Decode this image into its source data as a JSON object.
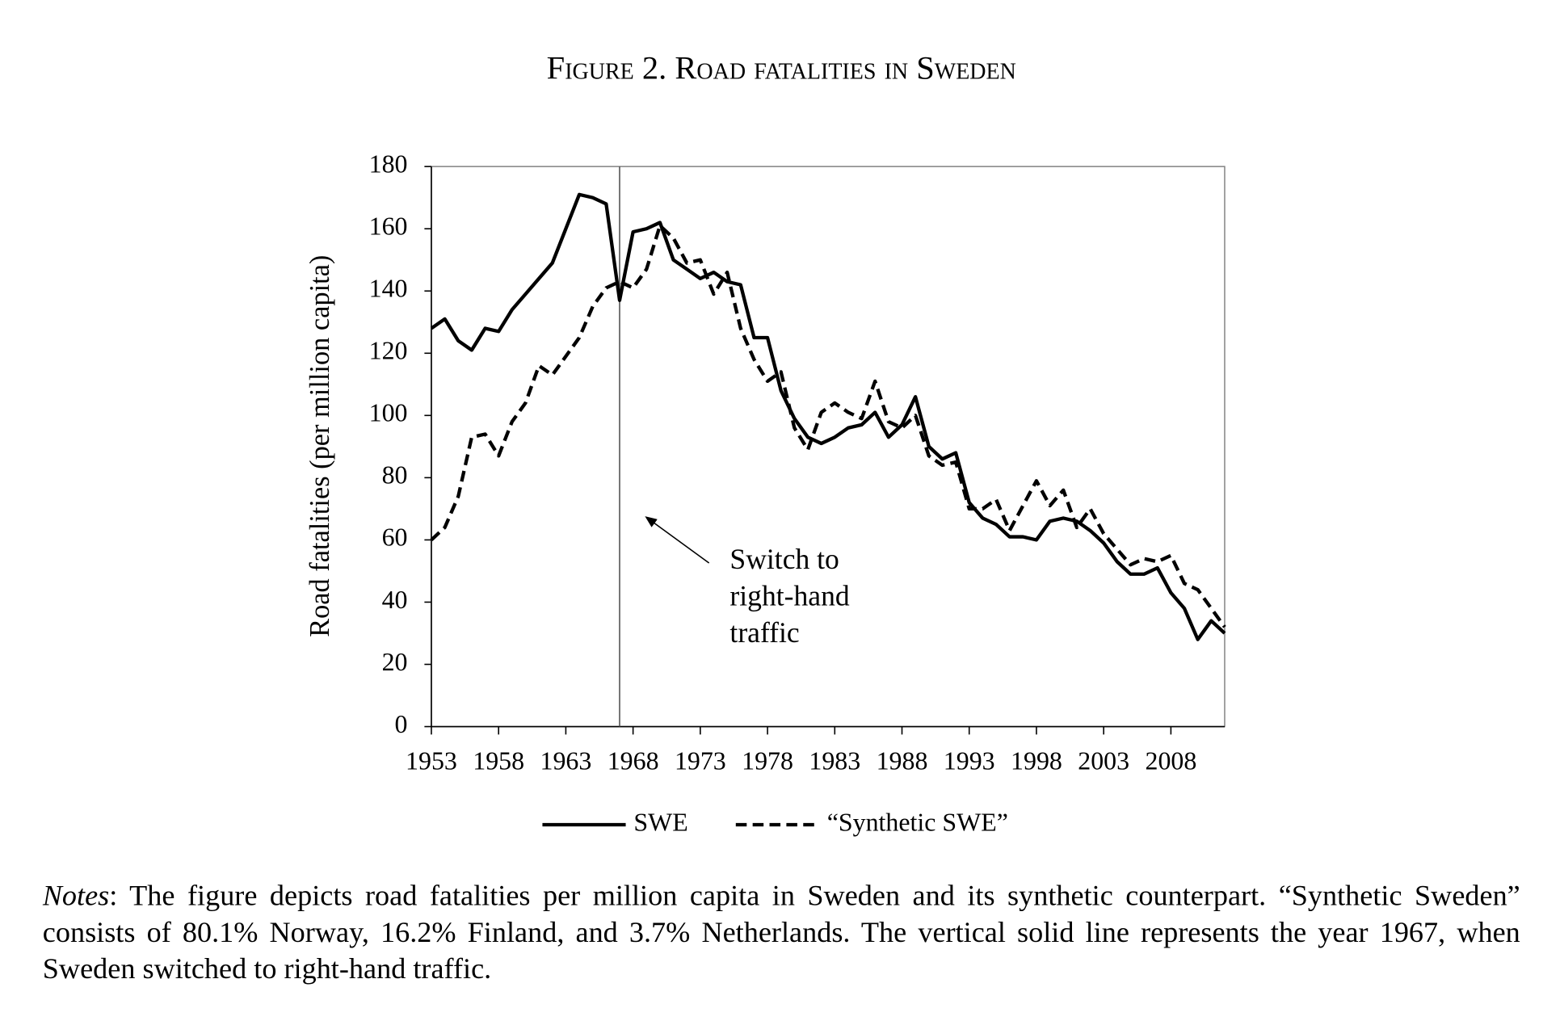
{
  "chart_data": {
    "type": "line",
    "title": "Figure 2. Road fatalities in Sweden",
    "ylabel": "Road fatalities (per million capita)",
    "x": [
      1953,
      1954,
      1955,
      1956,
      1957,
      1958,
      1959,
      1960,
      1961,
      1962,
      1963,
      1964,
      1965,
      1966,
      1967,
      1968,
      1969,
      1970,
      1971,
      1972,
      1973,
      1974,
      1975,
      1976,
      1977,
      1978,
      1979,
      1980,
      1981,
      1982,
      1983,
      1984,
      1985,
      1986,
      1987,
      1988,
      1989,
      1990,
      1991,
      1992,
      1993,
      1994,
      1995,
      1996,
      1997,
      1998,
      1999,
      2000,
      2001,
      2002,
      2003,
      2004,
      2005,
      2006,
      2007,
      2008,
      2009,
      2010,
      2011,
      2012
    ],
    "series": [
      {
        "name": "SWE",
        "color": "#000000",
        "dash": false,
        "values": [
          128,
          131,
          124,
          121,
          128,
          127,
          134,
          139,
          144,
          149,
          160,
          171,
          170,
          168,
          137,
          159,
          160,
          162,
          150,
          147,
          144,
          146,
          143,
          142,
          125,
          125,
          108,
          99,
          93,
          91,
          93,
          96,
          97,
          101,
          93,
          97,
          106,
          90,
          86,
          88,
          72,
          67,
          65,
          61,
          61,
          60,
          66,
          67,
          66,
          63,
          59,
          53,
          49,
          49,
          51,
          43,
          38,
          28,
          34,
          30
        ]
      },
      {
        "name": "“Synthetic SWE”",
        "color": "#000000",
        "dash": true,
        "values": [
          60,
          64,
          74,
          93,
          94,
          87,
          98,
          104,
          116,
          113,
          119,
          125,
          135,
          141,
          143,
          141,
          147,
          161,
          157,
          149,
          150,
          139,
          146,
          128,
          118,
          111,
          114,
          96,
          89,
          101,
          104,
          101,
          99,
          111,
          98,
          96,
          100,
          87,
          84,
          85,
          70,
          70,
          73,
          63,
          71,
          79,
          71,
          76,
          64,
          70,
          62,
          57,
          52,
          54,
          53,
          55,
          46,
          44,
          38,
          32
        ]
      }
    ],
    "xlim": [
      1953,
      2012
    ],
    "xticks": [
      1953,
      1958,
      1963,
      1968,
      1973,
      1978,
      1983,
      1988,
      1993,
      1998,
      2003,
      2008
    ],
    "ylim": [
      0,
      180
    ],
    "yticks": [
      0,
      20,
      40,
      60,
      80,
      100,
      120,
      140,
      160,
      180
    ],
    "grid": false,
    "legend": "bottom",
    "vline": 1967,
    "annotation": [
      "Switch to",
      "right-hand",
      "traffic"
    ]
  },
  "notes": {
    "label": "Notes",
    "text": ": The figure depicts road fatalities per million capita in Sweden and its synthetic counterpart. “Synthetic Sweden” consists of 80.1% Norway, 16.2% Finland, and 3.7% Netherlands. The vertical solid line represents the year 1967, when Sweden switched to right-hand traffic."
  }
}
